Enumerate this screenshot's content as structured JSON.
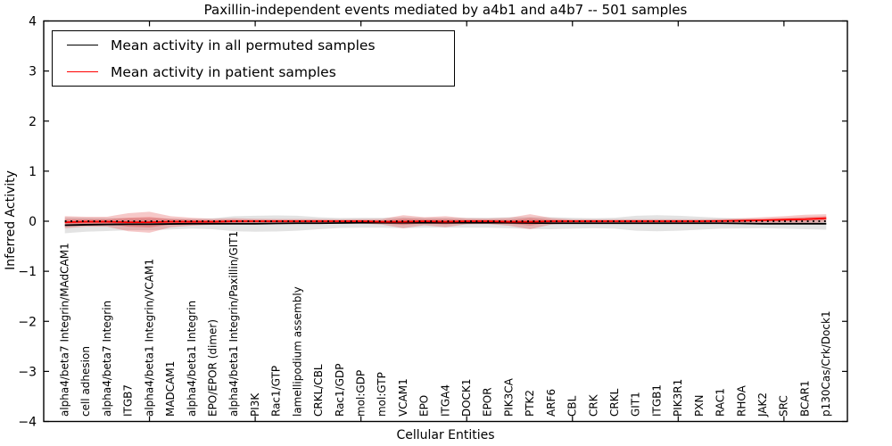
{
  "chart_data": {
    "type": "line",
    "title": "Paxillin-independent events mediated by a4b1 and a4b7 -- 501 samples",
    "xlabel": "Cellular Entities",
    "ylabel": "Inferred Activity",
    "ylim": [
      -4,
      4
    ],
    "xlim": [
      0,
      38
    ],
    "grid": false,
    "legend_position": "upper left",
    "yticks": [
      {
        "value": 4,
        "label": "4"
      },
      {
        "value": 3,
        "label": "3"
      },
      {
        "value": 2,
        "label": "2"
      },
      {
        "value": 1,
        "label": "1"
      },
      {
        "value": 0,
        "label": "0"
      },
      {
        "value": -1,
        "label": "−1"
      },
      {
        "value": -2,
        "label": "−2"
      },
      {
        "value": -3,
        "label": "−3"
      },
      {
        "value": -4,
        "label": "−4"
      }
    ],
    "xticks_major": [
      5,
      10,
      15,
      20,
      25,
      30,
      35
    ],
    "categories": [
      "alpha4/beta7 Integrin/MAdCAM1",
      "cell adhesion",
      "alpha4/beta7 Integrin",
      "ITGB7",
      "alpha4/beta1 Integrin/VCAM1",
      "MADCAM1",
      "alpha4/beta1 Integrin",
      "EPO/EPOR (dimer)",
      "alpha4/beta1 Integrin/Paxillin/GIT1",
      "PI3K",
      "Rac1/GTP",
      "lamellipodium assembly",
      "CRKL/CBL",
      "Rac1/GDP",
      "mol:GDP",
      "mol:GTP",
      "VCAM1",
      "EPO",
      "ITGA4",
      "DOCK1",
      "EPOR",
      "PIK3CA",
      "PTK2",
      "ARF6",
      "CBL",
      "CRK",
      "CRKL",
      "GIT1",
      "ITGB1",
      "PIK3R1",
      "PXN",
      "RAC1",
      "RHOA",
      "JAK2",
      "SRC",
      "BCAR1",
      "p130Cas/Crk/Dock1"
    ],
    "series": [
      {
        "name": "Mean activity in all permuted samples",
        "color": "#000000",
        "style": "solid",
        "width": 1.8,
        "values": [
          -0.08,
          -0.07,
          -0.065,
          -0.06,
          -0.06,
          -0.055,
          -0.05,
          -0.05,
          -0.05,
          -0.05,
          -0.045,
          -0.04,
          -0.04,
          -0.035,
          -0.03,
          -0.03,
          -0.03,
          -0.03,
          -0.03,
          -0.03,
          -0.03,
          -0.03,
          -0.035,
          -0.04,
          -0.04,
          -0.04,
          -0.04,
          -0.04,
          -0.04,
          -0.04,
          -0.04,
          -0.04,
          -0.045,
          -0.05,
          -0.05,
          -0.05,
          -0.05
        ]
      },
      {
        "name": "Mean activity in patient samples",
        "color": "#ff0000",
        "style": "solid",
        "width": 1.8,
        "values": [
          -0.02,
          -0.01,
          -0.01,
          -0.02,
          -0.02,
          -0.01,
          -0.01,
          -0.01,
          0,
          0,
          0,
          0,
          0,
          0,
          0,
          -0.01,
          -0.01,
          0,
          -0.01,
          0,
          0,
          -0.01,
          -0.01,
          0,
          0,
          0,
          0,
          0,
          0,
          0,
          0,
          0.005,
          0.01,
          0.02,
          0.03,
          0.04,
          0.06
        ]
      }
    ],
    "zero_line": {
      "value": 0,
      "style": "dotted",
      "color": "#000000"
    },
    "spreads": {
      "permuted": [
        0.16,
        0.14,
        0.13,
        0.12,
        0.12,
        0.11,
        0.1,
        0.11,
        0.15,
        0.16,
        0.16,
        0.15,
        0.12,
        0.1,
        0.1,
        0.1,
        0.11,
        0.1,
        0.1,
        0.1,
        0.1,
        0.11,
        0.12,
        0.12,
        0.11,
        0.1,
        0.11,
        0.15,
        0.16,
        0.15,
        0.13,
        0.11,
        0.1,
        0.09,
        0.1,
        0.11,
        0.12
      ],
      "patient": [
        0.06,
        0.05,
        0.05,
        0.09,
        0.105,
        0.055,
        0.04,
        0.03,
        0.03,
        0.025,
        0.022,
        0.022,
        0.022,
        0.02,
        0.022,
        0.028,
        0.065,
        0.04,
        0.055,
        0.03,
        0.028,
        0.04,
        0.075,
        0.032,
        0.02,
        0.02,
        0.02,
        0.02,
        0.02,
        0.02,
        0.02,
        0.02,
        0.025,
        0.03,
        0.035,
        0.045,
        0.04
      ]
    },
    "bands": [
      {
        "name": "permuted-sample-spread",
        "center_series": 0,
        "spread": "permuted",
        "multiplier": 1,
        "color": "#000000",
        "opacity": 0.11
      },
      {
        "name": "patient-sample-spread-outer",
        "center_series": 1,
        "spread": "patient",
        "multiplier": 2,
        "color": "#dd2222",
        "opacity": 0.25
      },
      {
        "name": "patient-sample-spread-inner",
        "center_series": 1,
        "spread": "patient",
        "multiplier": 1,
        "color": "#dd2222",
        "opacity": 0.28
      }
    ]
  }
}
